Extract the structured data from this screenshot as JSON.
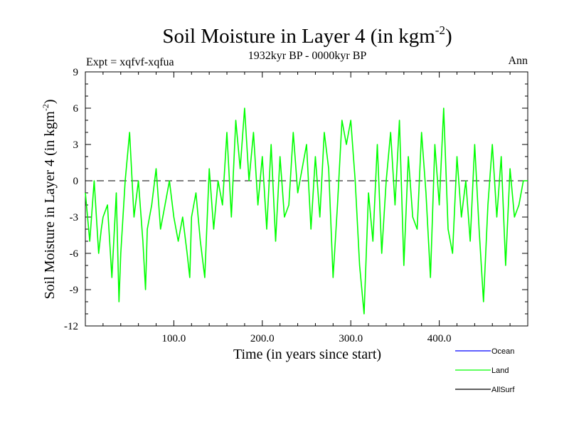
{
  "chart_data": {
    "type": "line",
    "title_main": "Soil Moisture in Layer 4 (in kgm",
    "title_sup": "-2",
    "title_close": ")",
    "subtitle": "1932kyr BP - 0000kyr BP",
    "expt_label": "Expt = xqfvf-xqfua",
    "period_label": "Ann",
    "ylabel_main": "Soil Moisture in Layer 4 (in kgm",
    "ylabel_sup": "-2",
    "ylabel_close": ")",
    "xlabel": "Time (in years since start)",
    "xlim": [
      0,
      500
    ],
    "ylim": [
      -12,
      9
    ],
    "xticks": [
      100,
      200,
      300,
      400
    ],
    "xtick_labels": [
      "100.0",
      "200.0",
      "300.0",
      "400.0"
    ],
    "yticks": [
      -12,
      -9,
      -6,
      -3,
      0,
      3,
      6,
      9
    ],
    "ytick_labels": [
      "-12",
      "-9",
      "-6",
      "-3",
      "0",
      "3",
      "6",
      "9"
    ],
    "zero_line": 0,
    "legend": [
      {
        "name": "Ocean",
        "color": "#0000ff"
      },
      {
        "name": "Land",
        "color": "#00ff00"
      },
      {
        "name": "AllSurf",
        "color": "#000000"
      }
    ],
    "series": [
      {
        "name": "Land",
        "color": "#00ff00",
        "x": [
          0,
          5,
          10,
          15,
          18,
          20,
          25,
          30,
          35,
          38,
          40,
          45,
          50,
          55,
          60,
          65,
          68,
          70,
          75,
          80,
          85,
          90,
          95,
          100,
          105,
          110,
          115,
          118,
          120,
          125,
          130,
          135,
          140,
          145,
          150,
          155,
          160,
          165,
          170,
          175,
          180,
          185,
          190,
          195,
          200,
          205,
          210,
          215,
          220,
          225,
          230,
          235,
          240,
          245,
          250,
          255,
          260,
          265,
          270,
          275,
          280,
          285,
          290,
          295,
          300,
          305,
          310,
          315,
          320,
          325,
          330,
          335,
          340,
          345,
          350,
          355,
          360,
          365,
          370,
          375,
          380,
          385,
          390,
          395,
          400,
          405,
          410,
          415,
          420,
          425,
          430,
          435,
          440,
          445,
          450,
          455,
          460,
          465,
          470,
          475,
          480,
          485,
          490,
          495,
          500
        ],
        "y": [
          -1,
          -5,
          0,
          -6,
          -4,
          -3,
          -2,
          -8,
          -1,
          -10,
          -6,
          0,
          4,
          -3,
          0,
          -5,
          -9,
          -4,
          -2,
          1,
          -4,
          -2,
          0,
          -3,
          -5,
          -3,
          -6,
          -8,
          -3,
          -1,
          -5,
          -8,
          1,
          -4,
          0,
          -2,
          4,
          -3,
          5,
          1,
          6,
          0,
          4,
          -2,
          2,
          -4,
          3,
          -5,
          2,
          -3,
          -2,
          4,
          -1,
          1,
          3,
          -4,
          2,
          -3,
          4,
          1,
          -8,
          -2,
          5,
          3,
          5,
          0,
          -7,
          -11,
          -1,
          -5,
          3,
          -6,
          0,
          4,
          -2,
          5,
          -7,
          2,
          -3,
          -4,
          4,
          -1,
          -8,
          3,
          -2,
          6,
          -4,
          -6,
          2,
          -3,
          0,
          -5,
          3,
          -4,
          -10,
          -2,
          3,
          -3,
          2,
          -7,
          1,
          -3,
          -2,
          0,
          0
        ]
      }
    ]
  }
}
